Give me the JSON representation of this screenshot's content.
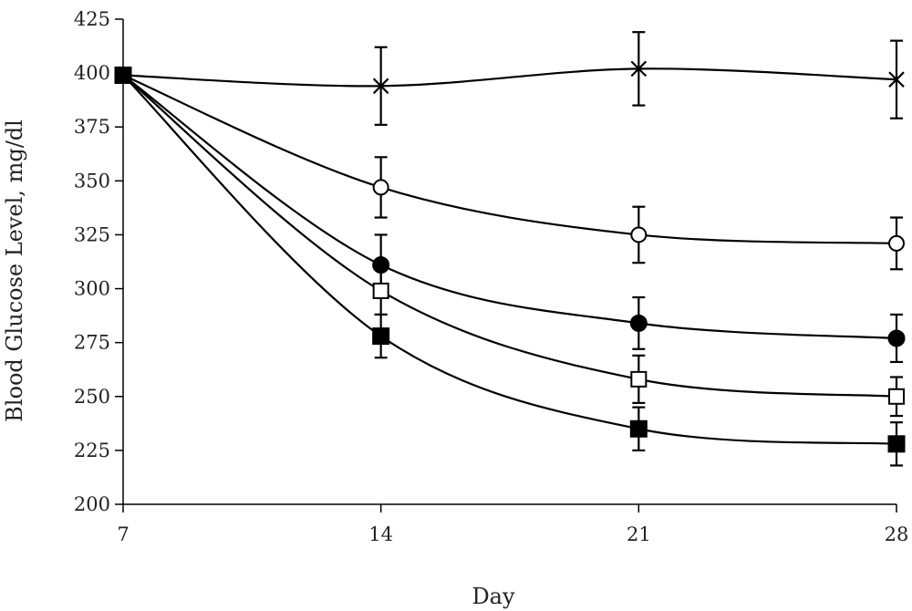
{
  "chart_data": {
    "type": "line",
    "title": "",
    "xlabel": "Day",
    "ylabel": "Blood Glucose Level, mg/dl",
    "x": [
      7,
      14,
      21,
      28
    ],
    "xticks": [
      "7",
      "14",
      "21",
      "28"
    ],
    "ylim": [
      200,
      425
    ],
    "yticks": [
      200,
      225,
      250,
      275,
      300,
      325,
      350,
      375,
      400,
      425
    ],
    "grid": false,
    "legend": "none",
    "series": [
      {
        "marker": "cross",
        "values": [
          399,
          394,
          402,
          397
        ],
        "errors": [
          0,
          18,
          17,
          18
        ]
      },
      {
        "marker": "open-circle",
        "values": [
          399,
          347,
          325,
          321
        ],
        "errors": [
          0,
          14,
          13,
          12
        ]
      },
      {
        "marker": "filled-circle",
        "values": [
          399,
          311,
          284,
          277
        ],
        "errors": [
          0,
          14,
          12,
          11
        ]
      },
      {
        "marker": "open-square",
        "values": [
          399,
          299,
          258,
          250
        ],
        "errors": [
          0,
          11,
          11,
          9
        ]
      },
      {
        "marker": "filled-square",
        "values": [
          399,
          278,
          235,
          228
        ],
        "errors": [
          0,
          10,
          10,
          10
        ]
      }
    ]
  }
}
